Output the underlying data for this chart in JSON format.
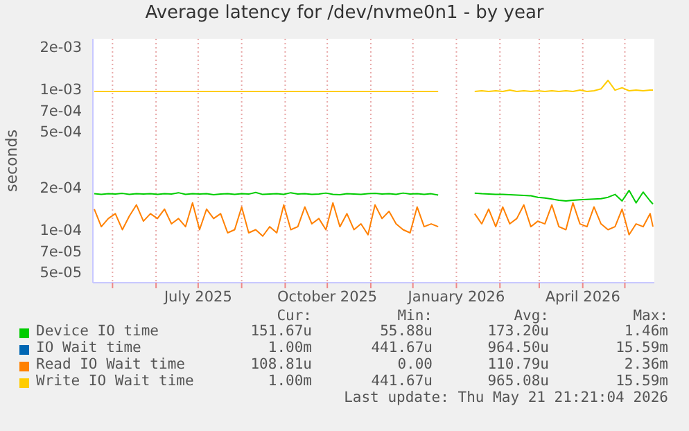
{
  "chart_data": {
    "type": "line",
    "title": "Average latency for /dev/nvme0n1 - by year",
    "ylabel": "seconds",
    "log": true,
    "grid": true,
    "legend": "bottom",
    "x": [
      "2025-04-18",
      "2025-04-23",
      "2025-04-28",
      "2025-05-03",
      "2025-05-08",
      "2025-05-13",
      "2025-05-18",
      "2025-05-23",
      "2025-05-28",
      "2025-06-02",
      "2025-06-07",
      "2025-06-12",
      "2025-06-17",
      "2025-06-22",
      "2025-06-27",
      "2025-07-02",
      "2025-07-07",
      "2025-07-12",
      "2025-07-17",
      "2025-07-22",
      "2025-07-27",
      "2025-08-01",
      "2025-08-06",
      "2025-08-11",
      "2025-08-16",
      "2025-08-21",
      "2025-08-26",
      "2025-08-31",
      "2025-09-05",
      "2025-09-10",
      "2025-09-15",
      "2025-09-20",
      "2025-09-25",
      "2025-09-30",
      "2025-10-05",
      "2025-10-10",
      "2025-10-15",
      "2025-10-20",
      "2025-10-25",
      "2025-10-30",
      "2025-11-04",
      "2025-11-09",
      "2025-11-14",
      "2025-11-19",
      "2025-11-24",
      "2025-11-29",
      "2025-12-04",
      "2025-12-09",
      "2025-12-14",
      "2025-12-19",
      "2025-12-30",
      "2026-01-14",
      "2026-01-19",
      "2026-01-24",
      "2026-01-29",
      "2026-02-03",
      "2026-02-08",
      "2026-02-13",
      "2026-02-18",
      "2026-02-23",
      "2026-02-28",
      "2026-03-05",
      "2026-03-10",
      "2026-03-15",
      "2026-03-20",
      "2026-03-25",
      "2026-03-30",
      "2026-04-04",
      "2026-04-09",
      "2026-04-14",
      "2026-04-19",
      "2026-04-24",
      "2026-04-29",
      "2026-05-04",
      "2026-05-09",
      "2026-05-14",
      "2026-05-19",
      "2026-05-21"
    ],
    "xlim": [
      "2025-04-17",
      "2026-05-22"
    ],
    "xticks": [
      {
        "value": "2025-05-01",
        "label": null
      },
      {
        "value": "2025-06-01",
        "label": null
      },
      {
        "value": "2025-07-01",
        "label": "July 2025"
      },
      {
        "value": "2025-08-01",
        "label": null
      },
      {
        "value": "2025-09-01",
        "label": null
      },
      {
        "value": "2025-10-01",
        "label": "October 2025"
      },
      {
        "value": "2025-11-01",
        "label": null
      },
      {
        "value": "2025-12-01",
        "label": null
      },
      {
        "value": "2026-01-01",
        "label": "January 2026"
      },
      {
        "value": "2026-02-01",
        "label": null
      },
      {
        "value": "2026-03-01",
        "label": null
      },
      {
        "value": "2026-04-01",
        "label": "April 2026"
      },
      {
        "value": "2026-05-01",
        "label": null
      }
    ],
    "ylim": [
      4.2e-05,
      0.00227
    ],
    "yticks": [
      {
        "value": 5e-05,
        "label": "5e-05"
      },
      {
        "value": 7e-05,
        "label": "7e-05"
      },
      {
        "value": 0.0001,
        "label": "1e-04"
      },
      {
        "value": 0.0002,
        "label": "2e-04"
      },
      {
        "value": 0.0005,
        "label": "5e-04"
      },
      {
        "value": 0.0007,
        "label": "7e-04"
      },
      {
        "value": 0.001,
        "label": "1e-03"
      },
      {
        "value": 0.002,
        "label": "2e-03"
      }
    ],
    "series": [
      {
        "name": "Device IO time",
        "color": "#00cc00",
        "values": [
          0.00018,
          0.000178,
          0.00018,
          0.000179,
          0.000181,
          0.000178,
          0.00018,
          0.000179,
          0.00018,
          0.000178,
          0.00018,
          0.000179,
          0.000183,
          0.000178,
          0.00018,
          0.000179,
          0.00018,
          0.000177,
          0.000179,
          0.00018,
          0.000178,
          0.00018,
          0.000179,
          0.000184,
          0.000178,
          0.000179,
          0.00018,
          0.000178,
          0.000183,
          0.000179,
          0.00018,
          0.000178,
          0.000179,
          0.000182,
          0.000178,
          0.000177,
          0.00018,
          0.000179,
          0.000178,
          0.00018,
          0.000181,
          0.000179,
          0.00018,
          0.000178,
          0.000182,
          0.000179,
          0.00018,
          0.000178,
          0.00018,
          0.000176,
          null,
          0.000182,
          0.00018,
          0.000179,
          0.000178,
          0.000178,
          0.000177,
          0.000176,
          0.000175,
          0.000174,
          0.00017,
          0.000168,
          0.000165,
          0.000162,
          0.00016,
          0.000162,
          0.000163,
          0.000164,
          0.000165,
          0.000166,
          0.00017,
          0.000178,
          0.00016,
          0.00019,
          0.000155,
          0.000185,
          0.00016,
          0.000152
        ]
      },
      {
        "name": "IO Wait time",
        "color": "#0066b3",
        "values": [
          null,
          null,
          null,
          null,
          null,
          null,
          null,
          null,
          null,
          null,
          null,
          null,
          null,
          null,
          null,
          null,
          null,
          null,
          null,
          null,
          null,
          null,
          null,
          null,
          null,
          null,
          null,
          null,
          null,
          null,
          null,
          null,
          null,
          null,
          null,
          null,
          null,
          null,
          null,
          null,
          null,
          null,
          null,
          null,
          null,
          null,
          null,
          null,
          null,
          null,
          null,
          null,
          null,
          null,
          null,
          null,
          null,
          null,
          null,
          null,
          null,
          null,
          null,
          null,
          null,
          null,
          null,
          null,
          null,
          null,
          null,
          null,
          null,
          null,
          null,
          null,
          null,
          null
        ]
      },
      {
        "name": "Read IO Wait time",
        "color": "#ff8000",
        "values": [
          0.00014,
          0.000105,
          0.00012,
          0.00013,
          0.0001,
          0.000125,
          0.00015,
          0.000115,
          0.00013,
          0.00012,
          0.00014,
          0.00011,
          0.00012,
          0.000105,
          0.000155,
          0.0001,
          0.00014,
          0.00012,
          0.00013,
          9.5e-05,
          0.0001,
          0.000145,
          9.5e-05,
          0.0001,
          9e-05,
          0.000105,
          9.5e-05,
          0.00015,
          0.0001,
          0.000105,
          0.000145,
          0.00011,
          0.00012,
          0.0001,
          0.000155,
          0.000105,
          0.00013,
          0.0001,
          0.00011,
          9.2e-05,
          0.00015,
          0.00012,
          0.000135,
          0.00011,
          0.0001,
          9.5e-05,
          0.000145,
          0.000105,
          0.00011,
          0.000105,
          null,
          0.00013,
          0.00011,
          0.00014,
          0.000105,
          0.000145,
          0.00011,
          0.00012,
          0.00015,
          0.000105,
          0.000115,
          0.00011,
          0.00015,
          0.000105,
          0.0001,
          0.000155,
          0.00011,
          0.000105,
          0.000145,
          0.00011,
          0.0001,
          0.000105,
          0.00014,
          9.2e-05,
          0.00011,
          0.000105,
          0.00013,
          0.000105
        ]
      },
      {
        "name": "Write IO Wait time",
        "color": "#ffcc00",
        "values": [
          0.00096,
          0.00096,
          0.00096,
          0.00096,
          0.00096,
          0.00096,
          0.00096,
          0.00096,
          0.00096,
          0.00096,
          0.00096,
          0.00096,
          0.00096,
          0.00096,
          0.00096,
          0.00096,
          0.00096,
          0.00096,
          0.00096,
          0.00096,
          0.00096,
          0.00096,
          0.00096,
          0.00096,
          0.00096,
          0.00096,
          0.00096,
          0.00096,
          0.00096,
          0.00096,
          0.00096,
          0.00096,
          0.00096,
          0.00096,
          0.00096,
          0.00096,
          0.00096,
          0.00096,
          0.00096,
          0.00096,
          0.00096,
          0.00096,
          0.00096,
          0.00096,
          0.00096,
          0.00096,
          0.00096,
          0.00096,
          0.00096,
          0.00096,
          null,
          0.00096,
          0.00097,
          0.00096,
          0.00097,
          0.00096,
          0.00098,
          0.00096,
          0.00097,
          0.00096,
          0.00097,
          0.00096,
          0.00097,
          0.00096,
          0.00097,
          0.00096,
          0.00098,
          0.00096,
          0.00097,
          0.001,
          0.00115,
          0.00098,
          0.00102,
          0.00097,
          0.00098,
          0.00097,
          0.00098,
          0.00098
        ]
      }
    ],
    "annotations": [
      "Cur:",
      "Min:",
      "Avg:",
      "Max:",
      "151.67u",
      "55.88u",
      "173.20u",
      "1.46m",
      "1.00m",
      "441.67u",
      "964.50u",
      "15.59m",
      "108.81u",
      "0.00",
      "110.79u",
      "2.36m",
      "1.00m",
      "441.67u",
      "965.08u",
      "15.59m",
      "Last update: Thu May 21 21:21:04 2026"
    ]
  }
}
